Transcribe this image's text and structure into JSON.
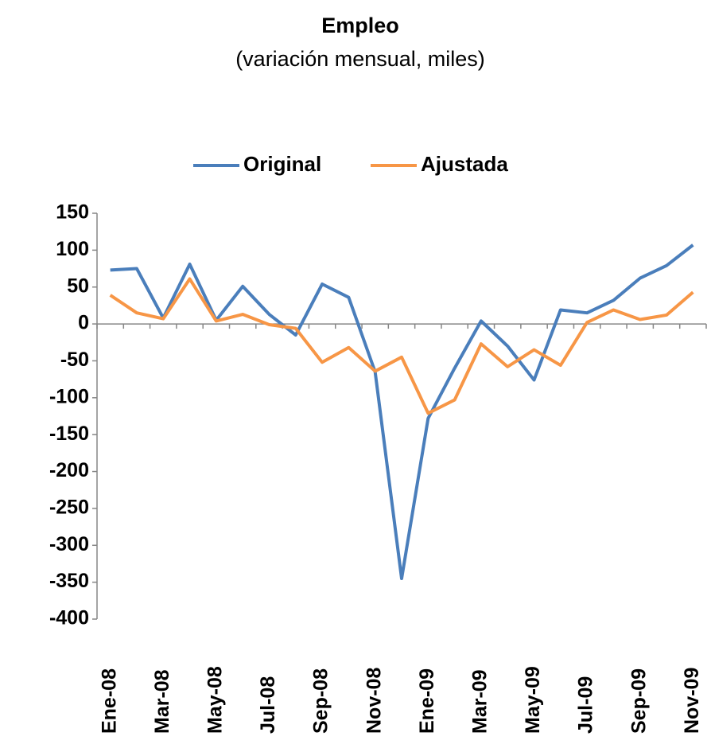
{
  "chart_data": {
    "type": "line",
    "title": "Empleo",
    "subtitle": "(variación mensual, miles)",
    "categories": [
      "Ene-08",
      null,
      "Mar-08",
      null,
      "May-08",
      null,
      "Jul-08",
      null,
      "Sep-08",
      null,
      "Nov-08",
      null,
      "Ene-09",
      null,
      "Mar-09",
      null,
      "May-09",
      null,
      "Jul-09",
      null,
      "Sep-09",
      null,
      "Nov-09"
    ],
    "series": [
      {
        "name": "Original",
        "color": "#4a7ebb",
        "values": [
          73,
          75,
          8,
          81,
          5,
          51,
          13,
          -15,
          54,
          36,
          -65,
          -345,
          -128,
          -60,
          4,
          -30,
          -76,
          19,
          15,
          32,
          62,
          79,
          107
        ]
      },
      {
        "name": "Ajustada",
        "color": "#f79646",
        "values": [
          39,
          15,
          7,
          61,
          4,
          13,
          -1,
          -6,
          -52,
          -32,
          -64,
          -45,
          -121,
          -103,
          -27,
          -58,
          -35,
          -56,
          2,
          19,
          6,
          12,
          43
        ]
      }
    ],
    "ylim": [
      -400,
      150
    ],
    "yticks": [
      -400,
      -350,
      -300,
      -250,
      -200,
      -150,
      -100,
      -50,
      0,
      50,
      100,
      150
    ],
    "grid": false,
    "legend": "top"
  }
}
